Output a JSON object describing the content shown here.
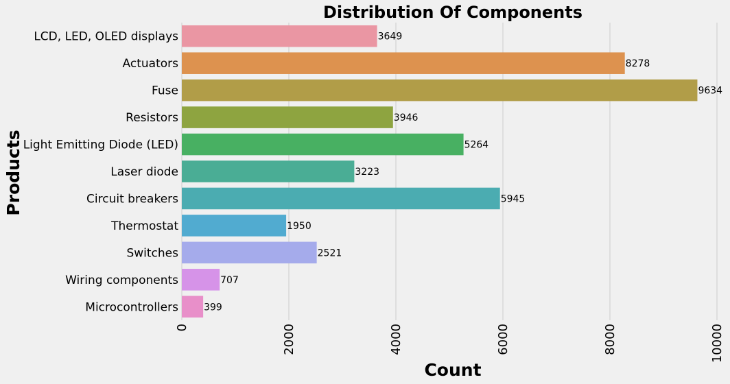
{
  "chart_data": {
    "type": "bar",
    "orientation": "horizontal",
    "title": "Distribution Of Components",
    "xlabel": "Count",
    "ylabel": "Products",
    "xlim": [
      0,
      10000
    ],
    "x_ticks": [
      0,
      2000,
      4000,
      6000,
      8000,
      10000
    ],
    "grid": true,
    "categories": [
      "LCD, LED, OLED displays",
      "Actuators",
      "Fuse",
      "Resistors",
      "Light Emitting Diode (LED)",
      "Laser diode",
      "Circuit breakers",
      "Thermostat",
      "Switches",
      "Wiring components",
      "Microcontrollers"
    ],
    "values": [
      3649,
      8278,
      9634,
      3946,
      5264,
      3223,
      5945,
      1950,
      2521,
      707,
      399
    ],
    "colors": [
      "#ea96a3",
      "#dd924f",
      "#b19d48",
      "#8ea440",
      "#48b062",
      "#4aad95",
      "#4bacb1",
      "#51abd0",
      "#a5abeb",
      "#d693e8",
      "#e88fc9"
    ],
    "background": "#f0f0f0",
    "grid_color": "#cbcbcb"
  }
}
